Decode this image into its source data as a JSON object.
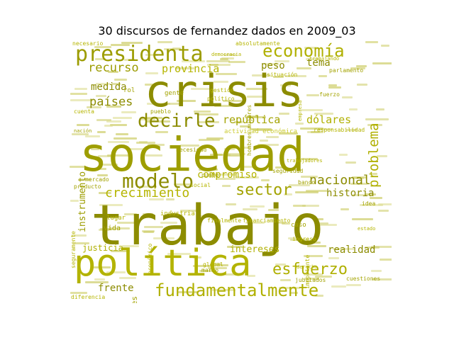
{
  "title": "30 discursos de fernandez dados en 2009_03",
  "palette": {
    "olive_dark": "#8c8c00",
    "olive": "#a3a300",
    "yellow_green": "#b5b500",
    "light_yellow": "#cccc33",
    "pale": "#d9d966"
  },
  "words": [
    {
      "text": "trabajo",
      "size": 78,
      "color": "#8c8c00",
      "rot": 0
    },
    {
      "text": "sociedad",
      "size": 66,
      "color": "#9e9e00",
      "rot": 0
    },
    {
      "text": "crisis",
      "size": 62,
      "color": "#8c8c00",
      "rot": 0
    },
    {
      "text": "política",
      "size": 52,
      "color": "#b3b300",
      "rot": 0
    },
    {
      "text": "presidenta",
      "size": 30,
      "color": "#9c9c00",
      "rot": 0
    },
    {
      "text": "fundamentalmente",
      "size": 24,
      "color": "#b0b000",
      "rot": 0
    },
    {
      "text": "modelo",
      "size": 28,
      "color": "#8c8c00",
      "rot": 0
    },
    {
      "text": "decirle",
      "size": 26,
      "color": "#8c8c00",
      "rot": 0
    },
    {
      "text": "economía",
      "size": 24,
      "color": "#b0b000",
      "rot": 0
    },
    {
      "text": "esfuerzo",
      "size": 22,
      "color": "#b0b000",
      "rot": 0
    },
    {
      "text": "sector",
      "size": 22,
      "color": "#a3a300",
      "rot": 0
    },
    {
      "text": "crecimiento",
      "size": 18,
      "color": "#b5b500",
      "rot": 0
    },
    {
      "text": "nacional",
      "size": 18,
      "color": "#8c8c00",
      "rot": 0
    },
    {
      "text": "recurso",
      "size": 17,
      "color": "#9c9c00",
      "rot": 0
    },
    {
      "text": "problema",
      "size": 19,
      "color": "#b0b000",
      "rot": -90
    },
    {
      "text": "países",
      "size": 17,
      "color": "#8c8c00",
      "rot": 0
    },
    {
      "text": "provincia",
      "size": 15,
      "color": "#b5b500",
      "rot": 0
    },
    {
      "text": "república",
      "size": 15,
      "color": "#a3a300",
      "rot": 0
    },
    {
      "text": "dólares",
      "size": 15,
      "color": "#b0b000",
      "rot": 0
    },
    {
      "text": "compromiso",
      "size": 14,
      "color": "#b5b500",
      "rot": 0
    },
    {
      "text": "historia",
      "size": 14,
      "color": "#8c8c00",
      "rot": 0
    },
    {
      "text": "realidad",
      "size": 14,
      "color": "#8c8c00",
      "rot": 0
    },
    {
      "text": "intereses",
      "size": 13,
      "color": "#b0b000",
      "rot": 0
    },
    {
      "text": "frente",
      "size": 14,
      "color": "#8c8c00",
      "rot": 0
    },
    {
      "text": "justicia",
      "size": 12,
      "color": "#b0b000",
      "rot": 0
    },
    {
      "text": "medida",
      "size": 14,
      "color": "#8c8c00",
      "rot": 0
    },
    {
      "text": "peso",
      "size": 14,
      "color": "#8c8c00",
      "rot": 0
    },
    {
      "text": "tema",
      "size": 14,
      "color": "#8c8c00",
      "rot": 0
    },
    {
      "text": "instrumento",
      "size": 13,
      "color": "#9c9c00",
      "rot": -90
    },
    {
      "text": "sectores",
      "size": 11,
      "color": "#a3a300",
      "rot": -90
    },
    {
      "text": "actividad económica",
      "size": 9,
      "color": "#cccc33",
      "rot": 0
    },
    {
      "text": "responsabilidad",
      "size": 8,
      "color": "#b5b500",
      "rot": 0
    },
    {
      "text": "necesario",
      "size": 8,
      "color": "#b5b500",
      "rot": 0
    },
    {
      "text": "absolutamente",
      "size": 8,
      "color": "#b5b500",
      "rot": 0
    },
    {
      "text": "trabajando",
      "size": 7,
      "color": "#b5b500",
      "rot": 0
    },
    {
      "text": "situación",
      "size": 8,
      "color": "#b5b500",
      "rot": 0
    },
    {
      "text": "parlamento",
      "size": 8,
      "color": "#a3a300",
      "rot": 0
    },
    {
      "text": "gestión",
      "size": 8,
      "color": "#b5b500",
      "rot": 0
    },
    {
      "text": "gente",
      "size": 9,
      "color": "#a3a300",
      "rot": 0
    },
    {
      "text": "necesidad",
      "size": 8,
      "color": "#a3a300",
      "rot": 0
    },
    {
      "text": "pueblo",
      "size": 8,
      "color": "#a3a300",
      "rot": 0
    },
    {
      "text": "cuenta",
      "size": 8,
      "color": "#b5b500",
      "rot": 0
    },
    {
      "text": "mercado",
      "size": 8,
      "color": "#a3a300",
      "rot": 0
    },
    {
      "text": "producto",
      "size": 8,
      "color": "#a3a300",
      "rot": 0
    },
    {
      "text": "industria",
      "size": 9,
      "color": "#b5b500",
      "rot": 0
    },
    {
      "text": "finalmente",
      "size": 8,
      "color": "#b5b500",
      "rot": 0
    },
    {
      "text": "financiamiento",
      "size": 8,
      "color": "#b5b500",
      "rot": 0
    },
    {
      "text": "social",
      "size": 8,
      "color": "#b5b500",
      "rot": 0
    },
    {
      "text": "banco",
      "size": 8,
      "color": "#a3a300",
      "rot": 0
    },
    {
      "text": "lugar",
      "size": 9,
      "color": "#b5b500",
      "rot": 0
    },
    {
      "text": "vida",
      "size": 10,
      "color": "#a3a300",
      "rot": 0
    },
    {
      "text": "caso",
      "size": 9,
      "color": "#a3a300",
      "rot": 0
    },
    {
      "text": "ingreso",
      "size": 8,
      "color": "#b5b500",
      "rot": 0
    },
    {
      "text": "global",
      "size": 8,
      "color": "#b5b500",
      "rot": 0
    },
    {
      "text": "marco",
      "size": 8,
      "color": "#a3a300",
      "rot": 0
    },
    {
      "text": "jubilados",
      "size": 8,
      "color": "#a3a300",
      "rot": 0
    },
    {
      "text": "derecho",
      "size": 7,
      "color": "#b5b500",
      "rot": 0
    },
    {
      "text": "cuestiones",
      "size": 8,
      "color": "#a3a300",
      "rot": 0
    },
    {
      "text": "diferencia",
      "size": 8,
      "color": "#b5b500",
      "rot": 0
    },
    {
      "text": "democracia",
      "size": 7,
      "color": "#b5b500",
      "rot": 0
    },
    {
      "text": "hombres mujeres",
      "size": 8,
      "color": "#a3a300",
      "rot": -90
    },
    {
      "text": "político",
      "size": 8,
      "color": "#b5b500",
      "rot": 0
    },
    {
      "text": "empresa",
      "size": 7,
      "color": "#b5b500",
      "rot": -90
    },
    {
      "text": "fuerzo",
      "size": 8,
      "color": "#a3a300",
      "rot": 0
    },
    {
      "text": "seguridad",
      "size": 8,
      "color": "#a3a300",
      "rot": 0
    },
    {
      "text": "importante",
      "size": 8,
      "color": "#b5b500",
      "rot": -90
    },
    {
      "text": "seguramente",
      "size": 8,
      "color": "#b5b500",
      "rot": -90
    },
    {
      "text": "nación",
      "size": 7,
      "color": "#a3a300",
      "rot": 0
    },
    {
      "text": "idea",
      "size": 8,
      "color": "#a3a300",
      "rot": 0
    },
    {
      "text": "económico",
      "size": 8,
      "color": "#b5b500",
      "rot": -90
    },
    {
      "text": "rol",
      "size": 9,
      "color": "#a3a300",
      "rot": 0
    },
    {
      "text": "punto",
      "size": 8,
      "color": "#a3a300",
      "rot": 0
    },
    {
      "text": "trabajadores",
      "size": 7,
      "color": "#b5b500",
      "rot": 0
    },
    {
      "text": "estado",
      "size": 7,
      "color": "#b5b500",
      "rot": 0
    }
  ]
}
